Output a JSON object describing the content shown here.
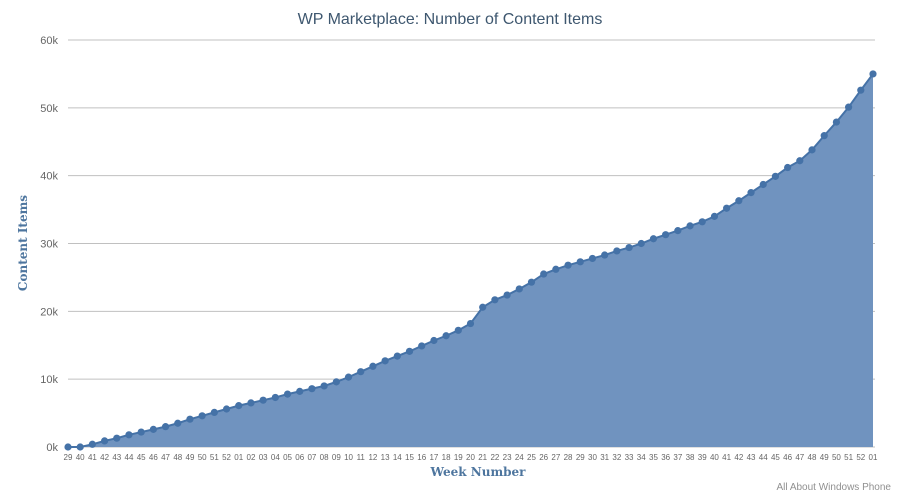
{
  "chart_data": {
    "type": "area",
    "title": "WP Marketplace: Number of Content Items",
    "xlabel": "Week Number",
    "ylabel": "Content Items",
    "credit": "All About Windows Phone",
    "ylim": [
      0,
      60000
    ],
    "yticks": [
      0,
      10000,
      20000,
      30000,
      40000,
      50000,
      60000
    ],
    "ytick_labels": [
      "0k",
      "10k",
      "20k",
      "30k",
      "40k",
      "50k",
      "60k"
    ],
    "grid": true,
    "legend": "none",
    "colors": {
      "fill": "#7093bf",
      "line": "#4572a7",
      "title": "#3e576f",
      "axis_title": "#4d759e",
      "grid": "#c0c0c0"
    },
    "categories": [
      "29",
      "40",
      "41",
      "42",
      "43",
      "44",
      "45",
      "46",
      "47",
      "48",
      "49",
      "50",
      "51",
      "52",
      "01",
      "02",
      "03",
      "04",
      "05",
      "06",
      "07",
      "08",
      "09",
      "10",
      "11",
      "12",
      "13",
      "14",
      "15",
      "16",
      "17",
      "18",
      "19",
      "20",
      "21",
      "22",
      "23",
      "24",
      "25",
      "26",
      "27",
      "28",
      "29",
      "30",
      "31",
      "32",
      "33",
      "34",
      "35",
      "36",
      "37",
      "38",
      "39",
      "40",
      "41",
      "42",
      "43",
      "44",
      "45",
      "46",
      "47",
      "48",
      "49",
      "50",
      "51",
      "52",
      "01"
    ],
    "series": [
      {
        "values": [
          0,
          0,
          400,
          900,
          1300,
          1800,
          2200,
          2600,
          3000,
          3500,
          4100,
          4600,
          5100,
          5600,
          6100,
          6500,
          6900,
          7300,
          7800,
          8200,
          8600,
          9000,
          9600,
          10300,
          11100,
          11900,
          12700,
          13400,
          14100,
          14900,
          15700,
          16400,
          17200,
          18200,
          20600,
          21700,
          22400,
          23300,
          24300,
          25500,
          26200,
          26800,
          27300,
          27800,
          28300,
          28900,
          29400,
          30000,
          30700,
          31300,
          31900,
          32600,
          33200,
          34000,
          35200,
          36300,
          37500,
          38700,
          39900,
          41200,
          42200,
          43800,
          45900,
          47900,
          50100,
          52600,
          55000
        ]
      }
    ]
  }
}
